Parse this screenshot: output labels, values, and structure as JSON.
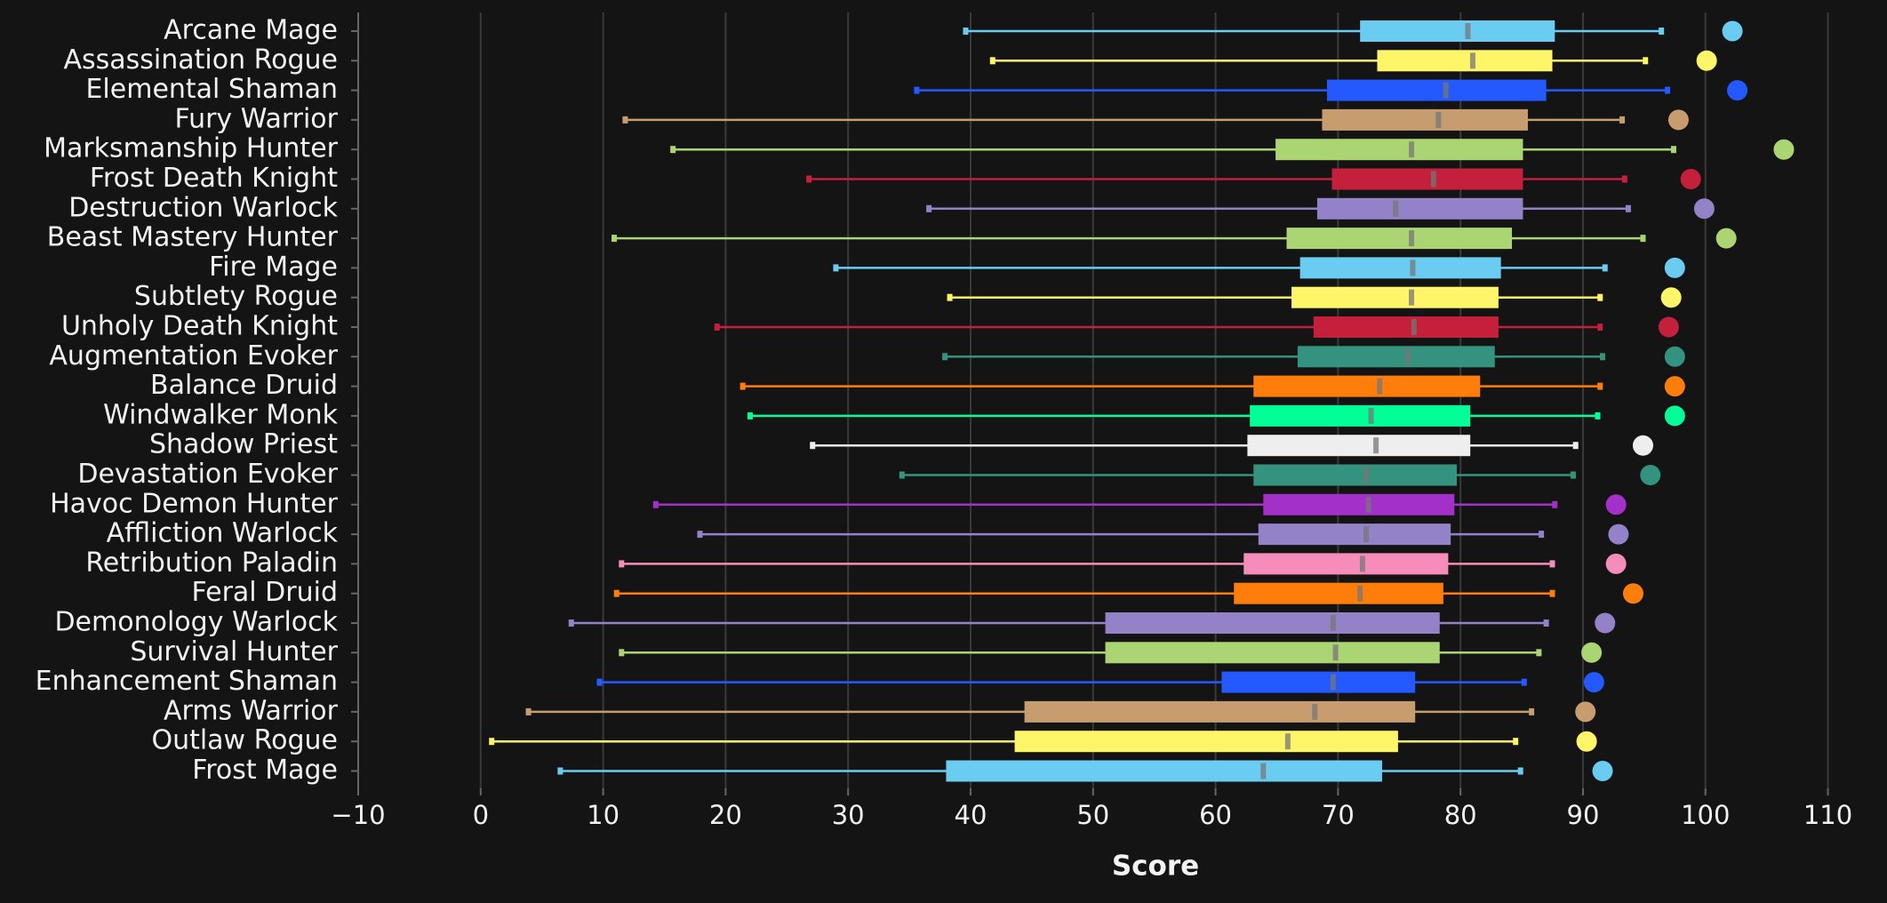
{
  "chart_data": {
    "type": "box",
    "orientation": "horizontal",
    "xlabel": "Score",
    "categories": [
      "Arcane Mage",
      "Assassination Rogue",
      "Elemental Shaman",
      "Fury Warrior",
      "Marksmanship Hunter",
      "Frost Death Knight",
      "Destruction Warlock",
      "Beast Mastery Hunter",
      "Fire Mage",
      "Subtlety Rogue",
      "Unholy Death Knight",
      "Augmentation Evoker",
      "Balance Druid",
      "Windwalker Monk",
      "Shadow Priest",
      "Devastation Evoker",
      "Havoc Demon Hunter",
      "Affliction Warlock",
      "Retribution Paladin",
      "Feral Druid",
      "Demonology Warlock",
      "Survival Hunter",
      "Enhancement Shaman",
      "Arms Warrior",
      "Outlaw Rogue",
      "Frost Mage"
    ],
    "min": [
      39.6,
      41.8,
      35.6,
      11.8,
      15.7,
      26.8,
      36.6,
      10.9,
      29.0,
      38.3,
      19.3,
      37.9,
      21.4,
      22.0,
      27.1,
      34.4,
      14.3,
      17.9,
      11.5,
      11.1,
      7.4,
      11.5,
      9.7,
      3.9,
      0.9,
      6.5
    ],
    "q1": [
      71.8,
      73.2,
      69.1,
      68.7,
      64.9,
      69.5,
      68.3,
      65.8,
      66.9,
      66.2,
      68.0,
      66.7,
      63.1,
      62.8,
      62.6,
      63.1,
      63.9,
      63.5,
      62.3,
      61.5,
      51.0,
      51.0,
      60.5,
      44.4,
      43.6,
      38.0
    ],
    "median": [
      80.6,
      81.0,
      78.8,
      78.2,
      76.0,
      77.8,
      74.7,
      76.0,
      76.1,
      76.0,
      76.2,
      75.7,
      73.4,
      72.7,
      73.1,
      72.3,
      72.5,
      72.3,
      72.0,
      71.8,
      69.6,
      69.8,
      69.6,
      68.1,
      65.9,
      63.9
    ],
    "q3": [
      87.7,
      87.5,
      87.0,
      85.5,
      85.1,
      85.1,
      85.1,
      84.2,
      83.3,
      83.1,
      83.1,
      82.8,
      81.6,
      80.8,
      80.8,
      79.7,
      79.5,
      79.2,
      79.0,
      78.6,
      78.3,
      78.3,
      76.3,
      76.3,
      74.9,
      73.6
    ],
    "max": [
      96.4,
      95.1,
      96.9,
      93.2,
      97.4,
      93.4,
      93.7,
      94.9,
      91.8,
      91.4,
      91.4,
      91.6,
      91.4,
      91.2,
      89.4,
      89.2,
      87.7,
      86.6,
      87.5,
      87.5,
      87.0,
      86.4,
      85.2,
      85.8,
      84.5,
      84.9
    ],
    "points": [
      102.2,
      100.1,
      102.6,
      97.8,
      106.4,
      98.8,
      99.9,
      101.7,
      97.5,
      97.2,
      97.0,
      97.5,
      97.5,
      97.5,
      94.9,
      95.5,
      92.7,
      92.9,
      92.7,
      94.1,
      91.8,
      90.7,
      90.9,
      90.2,
      90.3,
      91.6
    ],
    "colors": [
      "#69ccf0",
      "#fff569",
      "#2359ff",
      "#c79c6e",
      "#abd473",
      "#c41f3b",
      "#9482c9",
      "#abd473",
      "#69ccf0",
      "#fff569",
      "#c41f3b",
      "#33937f",
      "#ff7d0a",
      "#00ff96",
      "#eeeeee",
      "#33937f",
      "#a330c9",
      "#9482c9",
      "#f58cba",
      "#ff7d0a",
      "#9482c9",
      "#abd473",
      "#2359ff",
      "#c79c6e",
      "#fff569",
      "#69ccf0"
    ],
    "xlim": [
      -10,
      112.5
    ],
    "xticks": [
      {
        "value": -10,
        "label": "−10"
      },
      0,
      10,
      20,
      30,
      40,
      50,
      60,
      70,
      80,
      90,
      100,
      110
    ],
    "grid": true
  }
}
